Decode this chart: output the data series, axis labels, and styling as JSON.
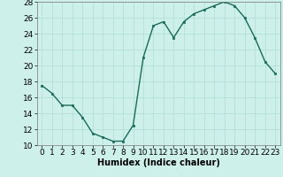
{
  "x": [
    0,
    1,
    2,
    3,
    4,
    5,
    6,
    7,
    8,
    9,
    10,
    11,
    12,
    13,
    14,
    15,
    16,
    17,
    18,
    19,
    20,
    21,
    22,
    23
  ],
  "y": [
    17.5,
    16.5,
    15.0,
    15.0,
    13.5,
    11.5,
    11.0,
    10.5,
    10.5,
    12.5,
    21.0,
    25.0,
    25.5,
    23.5,
    25.5,
    26.5,
    27.0,
    27.5,
    28.0,
    27.5,
    26.0,
    23.5,
    20.5,
    19.0
  ],
  "line_color": "#1a6b5a",
  "marker": "s",
  "marker_size": 2,
  "bg_color": "#cef0ea",
  "grid_color": "#b0ddd8",
  "xlabel": "Humidex (Indice chaleur)",
  "xlabel_fontsize": 7,
  "ylim": [
    10,
    28
  ],
  "xlim": [
    -0.5,
    23.5
  ],
  "yticks": [
    10,
    12,
    14,
    16,
    18,
    20,
    22,
    24,
    26,
    28
  ],
  "xticks": [
    0,
    1,
    2,
    3,
    4,
    5,
    6,
    7,
    8,
    9,
    10,
    11,
    12,
    13,
    14,
    15,
    16,
    17,
    18,
    19,
    20,
    21,
    22,
    23
  ],
  "tick_fontsize": 6.5
}
